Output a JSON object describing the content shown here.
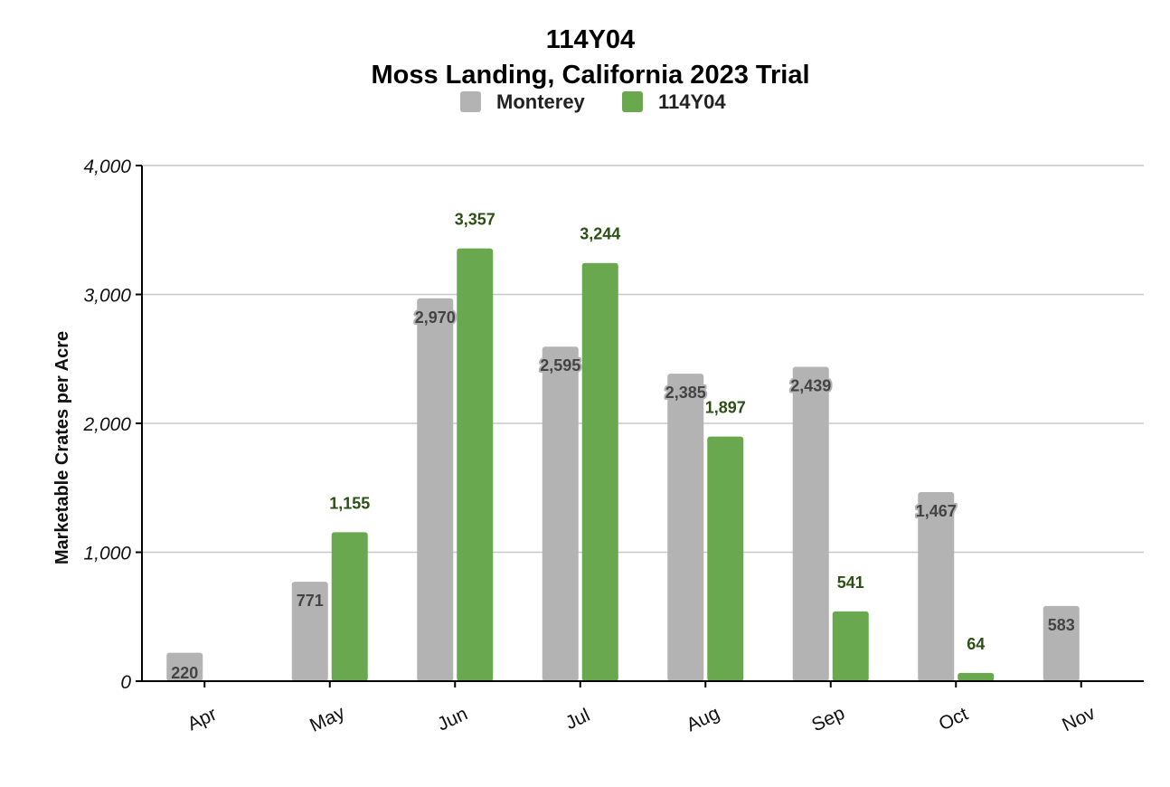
{
  "chart_data": {
    "type": "bar",
    "title": "114Y04",
    "subtitle": "Moss Landing, California 2023 Trial",
    "ylabel": "Marketable Crates per Acre",
    "xlabel": "",
    "categories": [
      "Apr",
      "May",
      "Jun",
      "Jul",
      "Aug",
      "Sep",
      "Oct",
      "Nov"
    ],
    "series": [
      {
        "name": "Monterey",
        "color": "#b3b3b3",
        "values": [
          220,
          771,
          2970,
          2595,
          2385,
          2439,
          1467,
          583
        ],
        "labels": [
          "220",
          "771",
          "2,970",
          "2,595",
          "2,385",
          "2,439",
          "1,467",
          "583"
        ]
      },
      {
        "name": "114Y04",
        "color": "#6aa84f",
        "values": [
          null,
          1155,
          3357,
          3244,
          1897,
          541,
          64,
          null
        ],
        "labels": [
          "",
          "1,155",
          "3,357",
          "3,244",
          "1,897",
          "541",
          "64",
          ""
        ]
      }
    ],
    "ylim": [
      0,
      4000
    ],
    "yticks": [
      0,
      1000,
      2000,
      3000,
      4000
    ],
    "ytick_labels": [
      "0",
      "1,000",
      "2,000",
      "3,000",
      "4,000"
    ],
    "grid": true,
    "legend_position": "top-center"
  }
}
